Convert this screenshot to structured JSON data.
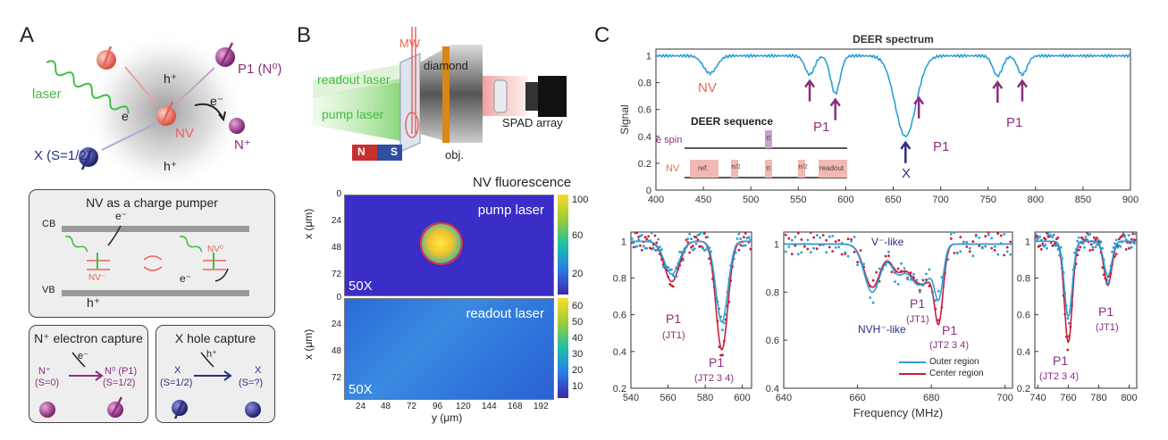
{
  "panel_a": {
    "label": "A",
    "laser": "laser",
    "e": "e",
    "e_minus": "e⁻",
    "h_plus_top": "h⁺",
    "h_plus_bottom": "h⁺",
    "nv": "NV",
    "p1": "P1 (N⁰)",
    "n_plus": "N⁺",
    "x_label": "X (S=1/2)",
    "pumper": {
      "title": "NV as a charge pumper",
      "cb": "CB",
      "vb": "VB",
      "e_top": "e⁻",
      "e_bottom": "e⁻",
      "h": "h⁺",
      "nv_minus": "NV⁻",
      "nv_zero": "NV⁰"
    },
    "capture_n": {
      "title": "N⁺ electron capture",
      "left": "N⁺",
      "left_spin": "(S=0)",
      "right": "N⁰ (P1)",
      "right_spin": "(S=1/2)",
      "arrow_label": "e⁻"
    },
    "capture_x": {
      "title": "X hole capture",
      "left": "X",
      "left_spin": "(S=1/2)",
      "right": "X",
      "right_spin": "(S=?)",
      "arrow_label": "h⁺"
    }
  },
  "panel_b": {
    "label": "B",
    "mw": "MW",
    "diamond": "diamond",
    "readout_laser": "readout laser",
    "pump_laser": "pump laser",
    "spad": "SPAD array",
    "obj": "obj.",
    "magnet_n": "N",
    "magnet_s": "S",
    "fluorescence_title": "NV fluorescence",
    "map1": {
      "label": "pump laser",
      "zoom": "50X",
      "y_ticks": [
        "0",
        "24",
        "48",
        "72"
      ],
      "colorbar_ticks": [
        "100",
        "60",
        "20"
      ]
    },
    "map2": {
      "label": "readout laser",
      "zoom": "50X",
      "y_ticks": [
        "0",
        "24",
        "48",
        "72"
      ],
      "colorbar_ticks": [
        "60",
        "50",
        "40",
        "30",
        "20",
        "10"
      ]
    },
    "x_ticks": [
      "24",
      "48",
      "72",
      "96",
      "120",
      "144",
      "168",
      "192"
    ],
    "ylabel": "x (μm)",
    "xlabel": "y (μm)"
  },
  "panel_c": {
    "label": "C",
    "seq": {
      "title": "DEER sequence",
      "espin": "e spin",
      "nv": "NV",
      "ref": "ref.",
      "half1": "π/2",
      "pi": "π",
      "half2": "π/2",
      "readout": "readout",
      "pi_top": "π"
    },
    "outer_legend": "Outer region",
    "center_legend": "Center region",
    "annot": {
      "nv": "NV",
      "p1_a": "P1",
      "x": "X",
      "p1_b": "P1",
      "p1_c": "P1",
      "m_p1_l": "P1",
      "m_jt1_l": "(JT1)",
      "m_p1_r": "P1",
      "m_jt234_r": "(JT2 3 4)",
      "v_like": "V⁻-like",
      "nvh_like": "NVH⁻-like",
      "c_p1_a": "P1",
      "c_jt1": "(JT1)",
      "c_p1_b": "P1",
      "c_jt234": "(JT2 3 4)",
      "r_p1_a": "P1",
      "r_jt234": "(JT2 3 4)",
      "r_p1_b": "P1",
      "r_jt1": "(JT1)"
    },
    "xlabel_bottom": "Frequency (MHz)"
  },
  "colors": {
    "outer": "#2a9fd6",
    "center": "#c81e3c",
    "nv": "#e8655a",
    "p1": "#8b2f7d",
    "x": "#2b2f80",
    "laser": "#3fbf3f"
  },
  "chart_data": [
    {
      "type": "line",
      "title": "DEER spectrum",
      "xlabel": "",
      "ylabel": "Signal",
      "xlim": [
        400,
        900
      ],
      "ylim": [
        0,
        1.05
      ],
      "x_ticks": [
        400,
        450,
        500,
        550,
        600,
        650,
        700,
        750,
        800,
        850,
        900
      ],
      "y_ticks": [
        0,
        0.2,
        0.4,
        0.6,
        0.8,
        1
      ],
      "dips": [
        {
          "x": 457,
          "depth": 0.13,
          "w": 7
        },
        {
          "x": 562,
          "depth": 0.14,
          "w": 5
        },
        {
          "x": 589,
          "depth": 0.28,
          "w": 5
        },
        {
          "x": 663,
          "depth": 0.6,
          "w": 11
        },
        {
          "x": 760,
          "depth": 0.15,
          "w": 5
        },
        {
          "x": 786,
          "depth": 0.14,
          "w": 5
        }
      ]
    },
    {
      "type": "line",
      "xlim": [
        540,
        605
      ],
      "ylim": [
        0.2,
        1.05
      ],
      "x_ticks": [
        540,
        560,
        580,
        600
      ],
      "y_ticks": [
        0.2,
        0.4,
        0.6,
        0.8,
        1
      ],
      "series": [
        {
          "name": "Outer region",
          "dips": [
            {
              "x": 562,
              "depth": 0.18,
              "w": 4
            },
            {
              "x": 589,
              "depth": 0.44,
              "w": 3.2
            }
          ]
        },
        {
          "name": "Center region",
          "dips": [
            {
              "x": 562,
              "depth": 0.22,
              "w": 4
            },
            {
              "x": 589,
              "depth": 0.59,
              "w": 3.2
            }
          ]
        }
      ]
    },
    {
      "type": "line",
      "xlim": [
        640,
        702
      ],
      "ylim": [
        0.4,
        1.05
      ],
      "x_ticks": [
        640,
        660,
        680,
        700
      ],
      "y_ticks": [
        0.4,
        0.6,
        0.8,
        1
      ],
      "xlabel": "Frequency (MHz)",
      "series": [
        {
          "name": "Outer region",
          "dips": [
            {
              "x": 664,
              "depth": 0.2,
              "w": 2.2
            },
            {
              "x": 671,
              "depth": 0.12,
              "w": 2
            },
            {
              "x": 676,
              "depth": 0.15,
              "w": 2
            },
            {
              "x": 679,
              "depth": 0.09,
              "w": 1.5
            },
            {
              "x": 682,
              "depth": 0.22,
              "w": 1.2
            }
          ]
        },
        {
          "name": "Center region",
          "dips": [
            {
              "x": 664,
              "depth": 0.18,
              "w": 2.2
            },
            {
              "x": 671,
              "depth": 0.11,
              "w": 2
            },
            {
              "x": 676,
              "depth": 0.14,
              "w": 2
            },
            {
              "x": 679,
              "depth": 0.1,
              "w": 1.5
            },
            {
              "x": 682,
              "depth": 0.32,
              "w": 1.2
            }
          ]
        }
      ]
    },
    {
      "type": "line",
      "xlim": [
        738,
        805
      ],
      "ylim": [
        0.2,
        1.05
      ],
      "x_ticks": [
        740,
        760,
        780,
        800
      ],
      "y_ticks": [
        0.2,
        0.4,
        0.6,
        0.8,
        1
      ],
      "series": [
        {
          "name": "Outer region",
          "dips": [
            {
              "x": 760,
              "depth": 0.41,
              "w": 2.6
            },
            {
              "x": 786,
              "depth": 0.19,
              "w": 2.6
            }
          ]
        },
        {
          "name": "Center region",
          "dips": [
            {
              "x": 760,
              "depth": 0.55,
              "w": 2.6
            },
            {
              "x": 786,
              "depth": 0.24,
              "w": 2.6
            }
          ]
        }
      ]
    }
  ]
}
